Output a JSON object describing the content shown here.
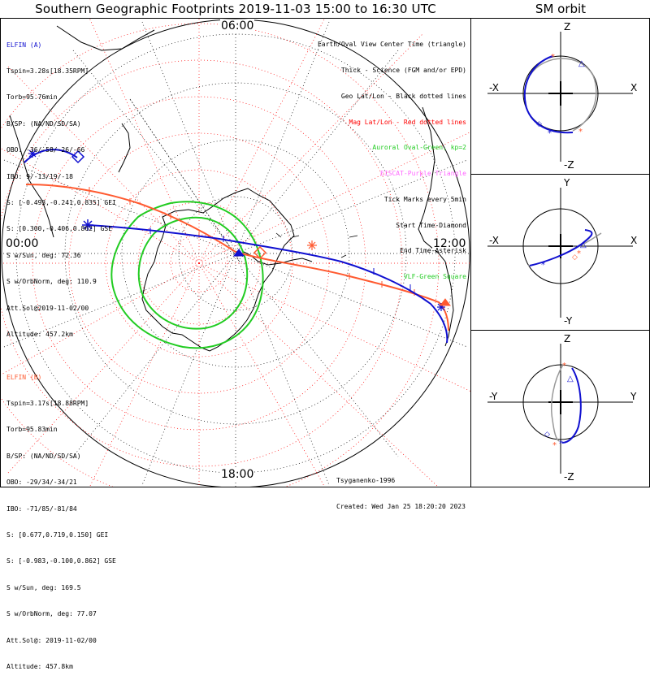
{
  "title": "Southern Geographic Footprints 2019-11-03 15:00 to 16:30 UTC",
  "sm_title": "SM orbit",
  "hour_labels": {
    "top": "06:00",
    "left": "00:00",
    "right": "12:00",
    "bottom": "18:00"
  },
  "elfin_a": {
    "name": "ELFIN (A)",
    "lines": [
      "Tspin=3.28s[18.35RPM]",
      "Torb=95.76min",
      "B/SP: (NA/ND/SD/SA)",
      "OBO: -36/-58/-26/-66",
      "IBO: 9/-13/19/-18",
      "S: [-0.493,-0.241,0.835] GEI",
      "S: [0.300,-0.406,0.862] GSE",
      "S w/Sun, deg: 72.36",
      "S w/OrbNorm, deg: 110.9",
      "Att.Sol@2019-11-02/00",
      "Altitude: 457.2km"
    ]
  },
  "elfin_b": {
    "name": "ELFIN (B)",
    "lines": [
      "Tspin=3.17s[18.88RPM]",
      "Torb=95.83min",
      "B/SP: (NA/ND/SD/SA)",
      "OBO: -29/34/-34/21",
      "IBO: -71/85/-81/84",
      "S: [0.677,0.719,0.150] GEI",
      "S: [-0.983,-0.100,0.862] GSE",
      "S w/Sun, deg: 169.5",
      "S w/OrbNorm, deg: 77.07",
      "Att.Sol@: 2019-11-02/00",
      "Altitude: 457.8km"
    ]
  },
  "legend": [
    {
      "text": "Earth/Oval View Center Time (triangle)",
      "color": "#000000"
    },
    {
      "text": "Thick - Science (FGM and/or EPD)",
      "color": "#000000"
    },
    {
      "text": "Geo Lat/Lon - Black dotted lines",
      "color": "#000000"
    },
    {
      "text": "Mag Lat/Lon - Red dotted lines",
      "color": "#ff0000"
    },
    {
      "text": "Auroral Oval-Green, kp=2",
      "color": "#22cc22"
    },
    {
      "text": "EISCAT-Purple Triangle",
      "color": "#ff66ff"
    },
    {
      "text": "Tick Marks every 5min",
      "color": "#000000"
    },
    {
      "text": "Start Time-Diamond",
      "color": "#000000"
    },
    {
      "text": "End Time-Asterisk",
      "color": "#000000"
    },
    {
      "text": "VLF-Green Square",
      "color": "#22cc22"
    }
  ],
  "credit": {
    "author": "Tsyganenko-1996",
    "created": "Created: Wed Jan 25 18:20:20 2023"
  },
  "sm_panels": [
    {
      "up": "Z",
      "down": "-Z",
      "left": "-X",
      "right": "X"
    },
    {
      "up": "Y",
      "down": "-Y",
      "left": "-X",
      "right": "X"
    },
    {
      "up": "Z",
      "down": "-Z",
      "left": "-Y",
      "right": "Y"
    }
  ],
  "colors": {
    "elfin_a": "#1010d0",
    "elfin_b": "#ff5a30",
    "oval": "#22cc22",
    "mag_grid": "#ff0000",
    "geo_grid": "#000000"
  },
  "icons": [
    "diamond-start-icon",
    "asterisk-end-icon",
    "triangle-center-icon",
    "eiscat-triangle-icon",
    "vlf-square-icon"
  ]
}
